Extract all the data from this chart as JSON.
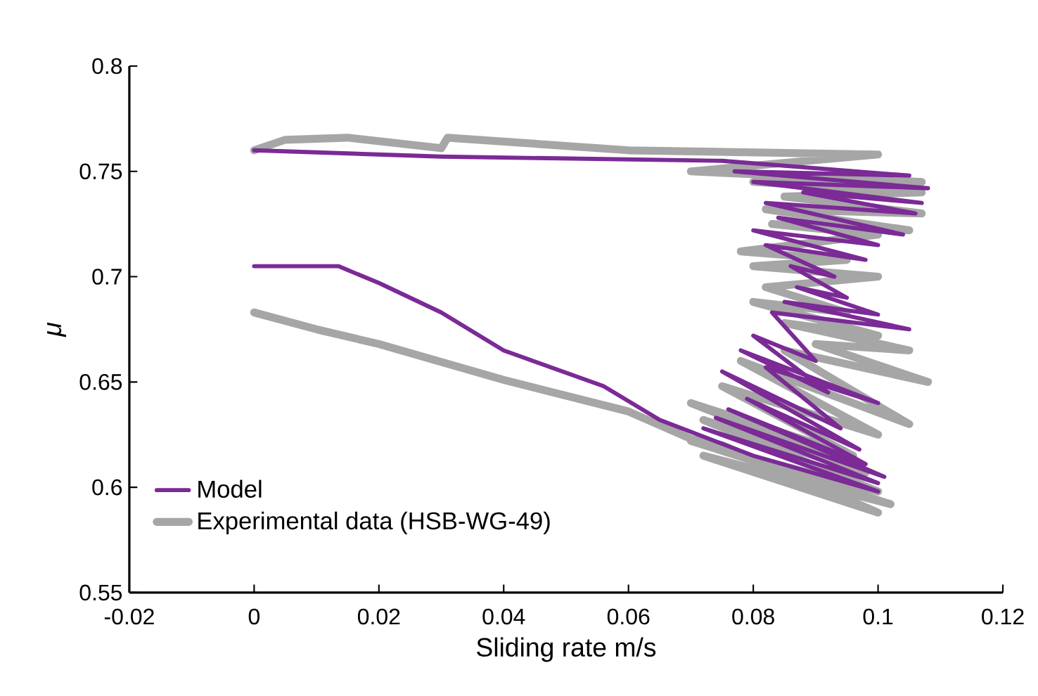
{
  "chart_data": {
    "type": "line",
    "xlabel": "Sliding rate m/s",
    "ylabel": "μ",
    "xlim": [
      -0.02,
      0.12
    ],
    "ylim": [
      0.55,
      0.8
    ],
    "xticks": [
      -0.02,
      0,
      0.02,
      0.04,
      0.06,
      0.08,
      0.1,
      0.12
    ],
    "yticks": [
      0.55,
      0.6,
      0.65,
      0.7,
      0.75,
      0.8
    ],
    "legend": "bottom left",
    "series": [
      {
        "name": "Model",
        "color": "#7b2a96",
        "x": [
          0,
          0.0135,
          0.02,
          0.03,
          0.04,
          0.056,
          0.065,
          0.08,
          0.1,
          0.072,
          0.1,
          0.074,
          0.101,
          0.076,
          0.098,
          0.079,
          0.097,
          0.075,
          0.094,
          0.082,
          0.1,
          0.078,
          0.092,
          0.08,
          0.09,
          0.083,
          0.105,
          0.085,
          0.1,
          0.087,
          0.095,
          0.086,
          0.093,
          0.082,
          0.098,
          0.08,
          0.1,
          0.084,
          0.104,
          0.082,
          0.106,
          0.088,
          0.107,
          0.08,
          0.108,
          0.077,
          0.105,
          0.075,
          0.03,
          0
        ],
        "values": [
          0.705,
          0.705,
          0.697,
          0.683,
          0.665,
          0.648,
          0.632,
          0.615,
          0.598,
          0.628,
          0.602,
          0.633,
          0.605,
          0.637,
          0.611,
          0.642,
          0.618,
          0.655,
          0.628,
          0.657,
          0.64,
          0.665,
          0.645,
          0.672,
          0.66,
          0.683,
          0.675,
          0.688,
          0.682,
          0.695,
          0.69,
          0.705,
          0.7,
          0.715,
          0.708,
          0.722,
          0.715,
          0.728,
          0.72,
          0.735,
          0.73,
          0.74,
          0.735,
          0.745,
          0.742,
          0.75,
          0.748,
          0.755,
          0.757,
          0.76
        ]
      },
      {
        "name": "Experimental data  (HSB-WG-49)",
        "color": "#a6a6a6",
        "x": [
          0,
          0.01,
          0.02,
          0.04,
          0.06,
          0.07,
          0.075,
          0.1,
          0.072,
          0.102,
          0.07,
          0.1,
          0.072,
          0.098,
          0.07,
          0.096,
          0.075,
          0.1,
          0.078,
          0.105,
          0.085,
          0.108,
          0.09,
          0.105,
          0.085,
          0.1,
          0.08,
          0.095,
          0.082,
          0.1,
          0.08,
          0.095,
          0.078,
          0.1,
          0.083,
          0.105,
          0.082,
          0.107,
          0.085,
          0.107,
          0.08,
          0.107,
          0.07,
          0.1,
          0.06,
          0.031,
          0.03,
          0.015,
          0.005,
          0
        ],
        "values": [
          0.683,
          0.675,
          0.668,
          0.651,
          0.636,
          0.623,
          0.62,
          0.588,
          0.615,
          0.592,
          0.622,
          0.598,
          0.632,
          0.607,
          0.64,
          0.615,
          0.648,
          0.625,
          0.66,
          0.63,
          0.665,
          0.65,
          0.668,
          0.665,
          0.678,
          0.672,
          0.688,
          0.683,
          0.695,
          0.7,
          0.705,
          0.708,
          0.712,
          0.72,
          0.725,
          0.722,
          0.732,
          0.73,
          0.738,
          0.74,
          0.745,
          0.745,
          0.75,
          0.758,
          0.76,
          0.766,
          0.761,
          0.766,
          0.765,
          0.76
        ]
      }
    ]
  }
}
